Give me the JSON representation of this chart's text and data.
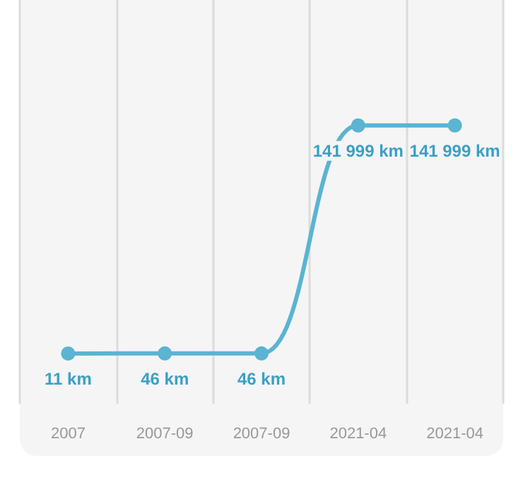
{
  "chart_data": {
    "type": "line",
    "categories": [
      "2007",
      "2007-09",
      "2007-09",
      "2021-04",
      "2021-04"
    ],
    "series": [
      {
        "color": "#5ab4d2",
        "values": [
          11,
          46,
          46,
          141999,
          141999
        ],
        "value_labels": [
          "11 km",
          "46 km",
          "46 km",
          "141 999 km",
          "141 999 km"
        ]
      }
    ],
    "marker": "circle",
    "grid": "x",
    "tick_labels": "x"
  }
}
